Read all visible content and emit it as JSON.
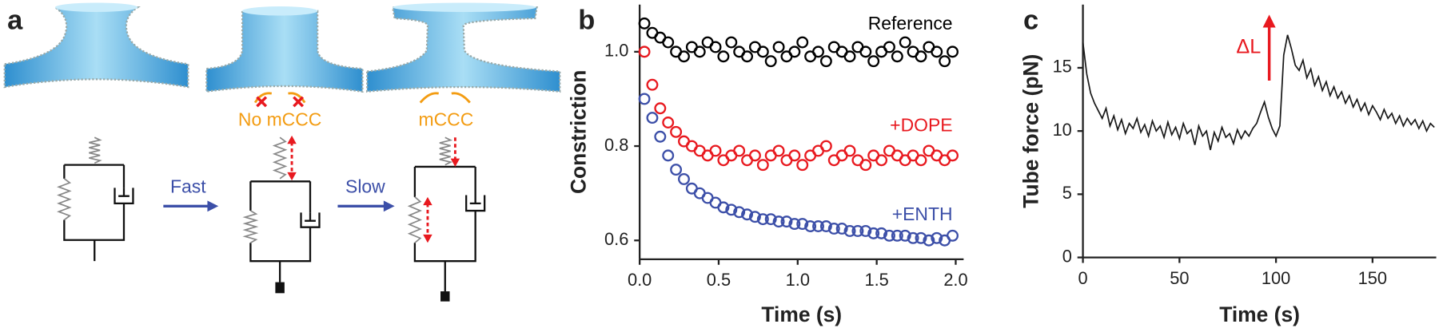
{
  "diagram": {
    "panel_label": "a",
    "no_mccc": "No mCCC",
    "mccc": "mCCC",
    "fast": "Fast",
    "slow": "Slow"
  },
  "chart_data": [
    {
      "type": "scatter",
      "panel_label": "b",
      "x_label": "Time (s)",
      "y_label": "Constriction",
      "xlim": [
        0,
        2.05
      ],
      "ylim": [
        0.56,
        1.1
      ],
      "xticks": [
        {
          "value": 0,
          "label": "0.0"
        },
        0.5,
        {
          "value": 1,
          "label": "1.0"
        },
        1.5,
        {
          "value": 2,
          "label": "2.0"
        }
      ],
      "yticks": [
        0.6,
        0.8,
        {
          "value": 1,
          "label": "1.0"
        }
      ],
      "x": [
        0.03,
        0.08,
        0.13,
        0.18,
        0.23,
        0.28,
        0.33,
        0.38,
        0.43,
        0.48,
        0.53,
        0.58,
        0.63,
        0.68,
        0.73,
        0.78,
        0.83,
        0.88,
        0.93,
        0.98,
        1.03,
        1.08,
        1.13,
        1.18,
        1.23,
        1.28,
        1.33,
        1.38,
        1.43,
        1.48,
        1.53,
        1.58,
        1.63,
        1.68,
        1.73,
        1.78,
        1.83,
        1.88,
        1.93,
        1.98
      ],
      "series": [
        {
          "name": "Reference",
          "color": "#000000",
          "values": [
            1.06,
            1.04,
            1.03,
            1.02,
            1.0,
            0.99,
            1.01,
            1.0,
            1.02,
            1.01,
            0.99,
            1.02,
            1.0,
            0.99,
            1.01,
            1.0,
            0.98,
            1.01,
            0.99,
            1.0,
            1.02,
            0.99,
            1.0,
            0.98,
            1.01,
            1.0,
            0.99,
            1.01,
            1.0,
            0.98,
            1.0,
            1.01,
            0.99,
            1.02,
            1.0,
            0.99,
            1.01,
            1.0,
            0.98,
            1.0
          ]
        },
        {
          "name": "+DOPE",
          "color": "#e8191f",
          "values": [
            1.0,
            0.93,
            0.88,
            0.85,
            0.83,
            0.81,
            0.8,
            0.79,
            0.78,
            0.79,
            0.77,
            0.78,
            0.79,
            0.77,
            0.78,
            0.76,
            0.78,
            0.79,
            0.77,
            0.78,
            0.76,
            0.78,
            0.79,
            0.8,
            0.77,
            0.78,
            0.79,
            0.77,
            0.76,
            0.78,
            0.77,
            0.79,
            0.78,
            0.77,
            0.78,
            0.77,
            0.79,
            0.78,
            0.77,
            0.78
          ]
        },
        {
          "name": "+ENTH",
          "color": "#3c4fa8",
          "values": [
            0.9,
            0.86,
            0.82,
            0.78,
            0.75,
            0.73,
            0.71,
            0.7,
            0.69,
            0.68,
            0.67,
            0.665,
            0.66,
            0.655,
            0.65,
            0.645,
            0.645,
            0.64,
            0.64,
            0.635,
            0.635,
            0.63,
            0.63,
            0.63,
            0.625,
            0.625,
            0.62,
            0.62,
            0.62,
            0.615,
            0.615,
            0.61,
            0.61,
            0.61,
            0.605,
            0.605,
            0.6,
            0.605,
            0.6,
            0.61
          ]
        }
      ]
    },
    {
      "type": "line",
      "panel_label": "c",
      "x_label": "Time (s)",
      "y_label": "Tube force (pN)",
      "xlim": [
        0,
        183
      ],
      "ylim": [
        0,
        20
      ],
      "xticks": [
        0,
        50,
        100,
        150
      ],
      "yticks": [
        0,
        5,
        10,
        15
      ],
      "annotation": "ΔL",
      "annotation_color": "#e8191f",
      "color": "#1a1a1a",
      "x": [
        0,
        2,
        4,
        6,
        8,
        10,
        12,
        14,
        16,
        18,
        20,
        22,
        24,
        26,
        28,
        30,
        32,
        34,
        36,
        38,
        40,
        42,
        44,
        46,
        48,
        50,
        52,
        54,
        56,
        58,
        60,
        62,
        64,
        66,
        68,
        70,
        72,
        74,
        76,
        78,
        80,
        82,
        84,
        86,
        88,
        90,
        92,
        94,
        96,
        98,
        100,
        102,
        104,
        106,
        108,
        110,
        112,
        114,
        116,
        118,
        120,
        122,
        124,
        126,
        128,
        130,
        132,
        134,
        136,
        138,
        140,
        142,
        144,
        146,
        148,
        150,
        152,
        154,
        156,
        158,
        160,
        162,
        164,
        166,
        168,
        170,
        172,
        174,
        176,
        178,
        180,
        182
      ],
      "values": [
        17.0,
        14.5,
        13.0,
        12.2,
        11.6,
        11.0,
        11.8,
        10.4,
        11.2,
        10.1,
        10.9,
        9.8,
        10.6,
        10.2,
        11.0,
        9.9,
        10.5,
        9.6,
        10.8,
        10.0,
        10.4,
        9.5,
        10.7,
        9.7,
        10.3,
        9.4,
        10.6,
        9.8,
        10.1,
        8.9,
        10.4,
        9.6,
        10.0,
        8.5,
        9.9,
        9.2,
        10.3,
        9.5,
        9.8,
        9.0,
        10.1,
        9.4,
        10.0,
        9.6,
        10.2,
        10.6,
        11.5,
        12.3,
        11.1,
        10.2,
        9.6,
        10.4,
        16.0,
        17.6,
        16.5,
        15.2,
        14.8,
        15.6,
        14.2,
        14.9,
        13.6,
        14.3,
        13.2,
        13.9,
        12.8,
        13.5,
        12.6,
        13.1,
        12.2,
        12.8,
        11.9,
        12.5,
        11.6,
        12.2,
        11.3,
        12.0,
        11.5,
        10.9,
        11.7,
        11.0,
        11.4,
        10.6,
        11.2,
        10.4,
        11.0,
        10.5,
        10.9,
        10.2,
        10.8,
        10.0,
        10.6,
        10.3
      ]
    }
  ]
}
